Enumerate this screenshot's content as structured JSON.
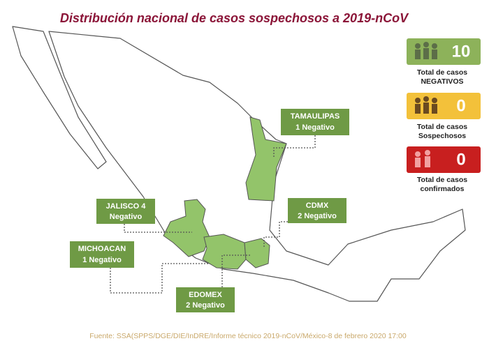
{
  "header": {
    "title": "Distribución nacional de casos sospechosos a 2019-nCoV"
  },
  "callouts": [
    {
      "name": "TAMAULIPAS",
      "result": "1 Negativo"
    },
    {
      "name": "JALISCO 4",
      "result": "Negativo"
    },
    {
      "name": "CDMX",
      "result": "2 Negativo"
    },
    {
      "name": "MICHOACAN",
      "result": "1 Negativo"
    },
    {
      "name": "EDOMEX",
      "result": "2 Negativo"
    }
  ],
  "totals": [
    {
      "value": 10,
      "label": [
        "Total de casos",
        "NEGATIVOS"
      ]
    },
    {
      "value": 0,
      "label": [
        "Total de casos",
        "Sospechosos"
      ]
    },
    {
      "value": 0,
      "label": [
        "Total de casos",
        "confirmados"
      ]
    }
  ],
  "source": "Fuente: SSA(SPPS/DGE/DIE/InDRE/Informe técnico 2019-nCoV/México-8 de febrero 2020 17:00"
}
